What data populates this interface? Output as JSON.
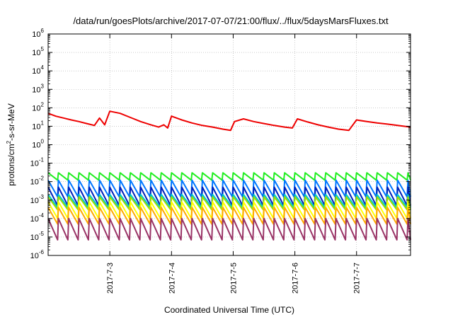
{
  "chart_data": {
    "type": "line",
    "title": "/data/run/goesPlots/archive/2017-07-07/21:00/flux/../flux/5daysMarsFluxes.txt",
    "xlabel": "Coordinated Universal Time (UTC)",
    "ylabel": "protons/cm²-s-sr-MeV",
    "ylabel_parts": [
      "protons/cm",
      "2",
      "-s-sr-MeV"
    ],
    "y_scale": "log",
    "ylim_exponents": [
      -6,
      6
    ],
    "y_ticks": [
      {
        "base": "10",
        "exp": "-6"
      },
      {
        "base": "10",
        "exp": "-5"
      },
      {
        "base": "10",
        "exp": "-4"
      },
      {
        "base": "10",
        "exp": "-3"
      },
      {
        "base": "10",
        "exp": "-2"
      },
      {
        "base": "10",
        "exp": "-1"
      },
      {
        "base": "10",
        "exp": "0"
      },
      {
        "base": "10",
        "exp": "1"
      },
      {
        "base": "10",
        "exp": "2"
      },
      {
        "base": "10",
        "exp": "3"
      },
      {
        "base": "10",
        "exp": "4"
      },
      {
        "base": "10",
        "exp": "5"
      },
      {
        "base": "10",
        "exp": "6"
      }
    ],
    "x_range": [
      "2017-07-02T00:00",
      "2017-07-07T21:00"
    ],
    "x_ticks": [
      "2017-7-3",
      "2017-7-4",
      "2017-7-5",
      "2017-7-6",
      "2017-7-7"
    ],
    "grid": true,
    "legend": "none",
    "series": [
      {
        "color": "#ee0000",
        "sawtooth": false,
        "values": [
          [
            "2017-07-02T00:00",
            50
          ],
          [
            "2017-07-02T03:00",
            35
          ],
          [
            "2017-07-02T06:00",
            28
          ],
          [
            "2017-07-02T09:00",
            22
          ],
          [
            "2017-07-02T12:00",
            18
          ],
          [
            "2017-07-02T15:00",
            14
          ],
          [
            "2017-07-02T18:00",
            11
          ],
          [
            "2017-07-02T20:00",
            28
          ],
          [
            "2017-07-02T22:00",
            12
          ],
          [
            "2017-07-03T00:00",
            65
          ],
          [
            "2017-07-03T04:00",
            50
          ],
          [
            "2017-07-03T08:00",
            30
          ],
          [
            "2017-07-03T12:00",
            18
          ],
          [
            "2017-07-03T16:00",
            12
          ],
          [
            "2017-07-03T19:00",
            9
          ],
          [
            "2017-07-03T21:00",
            12
          ],
          [
            "2017-07-03T22:30",
            8
          ],
          [
            "2017-07-04T00:00",
            35
          ],
          [
            "2017-07-04T04:00",
            22
          ],
          [
            "2017-07-04T08:00",
            15
          ],
          [
            "2017-07-04T12:00",
            11
          ],
          [
            "2017-07-04T16:00",
            9
          ],
          [
            "2017-07-04T20:00",
            7
          ],
          [
            "2017-07-04T23:00",
            6
          ],
          [
            "2017-07-05T00:30",
            18
          ],
          [
            "2017-07-05T04:00",
            25
          ],
          [
            "2017-07-05T08:00",
            18
          ],
          [
            "2017-07-05T12:00",
            14
          ],
          [
            "2017-07-05T16:00",
            11
          ],
          [
            "2017-07-05T20:00",
            9
          ],
          [
            "2017-07-05T23:00",
            8
          ],
          [
            "2017-07-06T01:00",
            25
          ],
          [
            "2017-07-06T05:00",
            17
          ],
          [
            "2017-07-06T09:00",
            12
          ],
          [
            "2017-07-06T13:00",
            9
          ],
          [
            "2017-07-06T17:00",
            7
          ],
          [
            "2017-07-06T21:00",
            6
          ],
          [
            "2017-07-07T00:00",
            22
          ],
          [
            "2017-07-07T04:00",
            18
          ],
          [
            "2017-07-07T08:00",
            15
          ],
          [
            "2017-07-07T12:00",
            13
          ],
          [
            "2017-07-07T16:00",
            11
          ],
          [
            "2017-07-07T21:00",
            9
          ]
        ]
      },
      {
        "color": "#22ee22",
        "sawtooth": true,
        "peak": 0.03,
        "trough": 0.012
      },
      {
        "color": "#0077ff",
        "sawtooth": true,
        "peak": 0.012,
        "trough": 0.0015
      },
      {
        "color": "#0022bb",
        "sawtooth": true,
        "peak": 0.005,
        "trough": 0.0005
      },
      {
        "color": "#00c8c8",
        "sawtooth": true,
        "peak": 0.002,
        "trough": 0.0004
      },
      {
        "color": "#99dd00",
        "sawtooth": true,
        "peak": 0.0015,
        "trough": 0.0003
      },
      {
        "color": "#ffff00",
        "sawtooth": true,
        "peak": 0.0008,
        "trough": 0.0001
      },
      {
        "color": "#ffaa00",
        "sawtooth": true,
        "peak": 0.0004,
        "trough": 5e-05
      },
      {
        "color": "#993366",
        "sawtooth": true,
        "peak": 0.0001,
        "trough": 7e-06
      }
    ],
    "sawtooth_period_hours": 4
  }
}
